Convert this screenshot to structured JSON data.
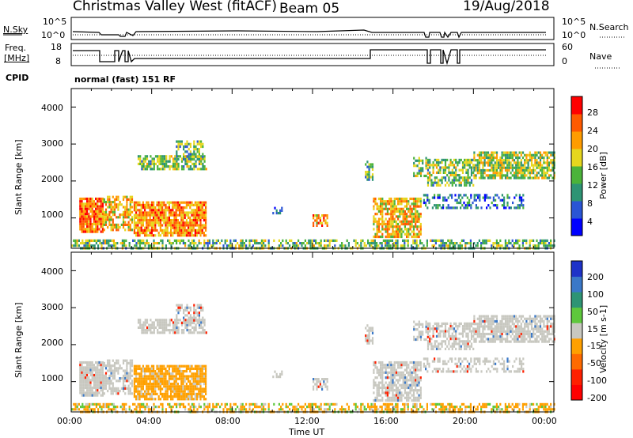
{
  "header": {
    "site": "Christmas Valley West (fitACF)",
    "beam": "Beam 05",
    "date": "19/Aug/2018"
  },
  "strip": {
    "nsky_label": "N.Sky",
    "nsky_ticks": [
      "10^5",
      "10^0"
    ],
    "nsearch_label": "N.Search",
    "nsearch_ticks": [
      "10^5",
      "10^0"
    ],
    "freq_label_1": "Freq.",
    "freq_label_2": "[MHz]",
    "freq_ticks": [
      "18",
      "8"
    ],
    "nave_label": "Nave",
    "nave_ticks": [
      "60",
      "0"
    ],
    "cpid_label": "CPID",
    "cpid_value": "normal (fast) 151 RF"
  },
  "chart_data": [
    {
      "type": "heatmap",
      "name": "power",
      "ylabel": "Slant Range [km]",
      "xlabel": "Time UT",
      "x_ticks": [
        "00:00",
        "04:00",
        "08:00",
        "12:00",
        "16:00",
        "20:00",
        "00:00"
      ],
      "y_ticks": [
        "1000",
        "2000",
        "3000",
        "4000"
      ],
      "ylim": [
        180,
        4500
      ],
      "colorbar_label": "Power [dB]",
      "colorbar_ticks": [
        "4",
        "8",
        "12",
        "16",
        "20",
        "24",
        "28"
      ],
      "colorbar_colors": [
        "#0000ff",
        "#2a55d5",
        "#2e9474",
        "#4bb33a",
        "#e6d61e",
        "#ff9c00",
        "#ff5a00",
        "#ff0000"
      ]
    },
    {
      "type": "heatmap",
      "name": "velocity",
      "ylabel": "Slant Range [km]",
      "xlabel": "Time UT",
      "x_ticks": [
        "00:00",
        "04:00",
        "08:00",
        "12:00",
        "16:00",
        "20:00",
        "00:00"
      ],
      "y_ticks": [
        "1000",
        "2000",
        "3000",
        "4000"
      ],
      "ylim": [
        180,
        4500
      ],
      "colorbar_label": "Velocity [m s-1]",
      "colorbar_ticks": [
        "200",
        "100",
        "50",
        "15",
        "-15",
        "-50",
        "-100",
        "-200"
      ],
      "colorbar_colors": [
        "#1e32c8",
        "#3a78c8",
        "#2e9474",
        "#5ec83c",
        "#c8c8c0",
        "#ffa000",
        "#ff6a00",
        "#ff2000",
        "#ff0000"
      ]
    }
  ]
}
